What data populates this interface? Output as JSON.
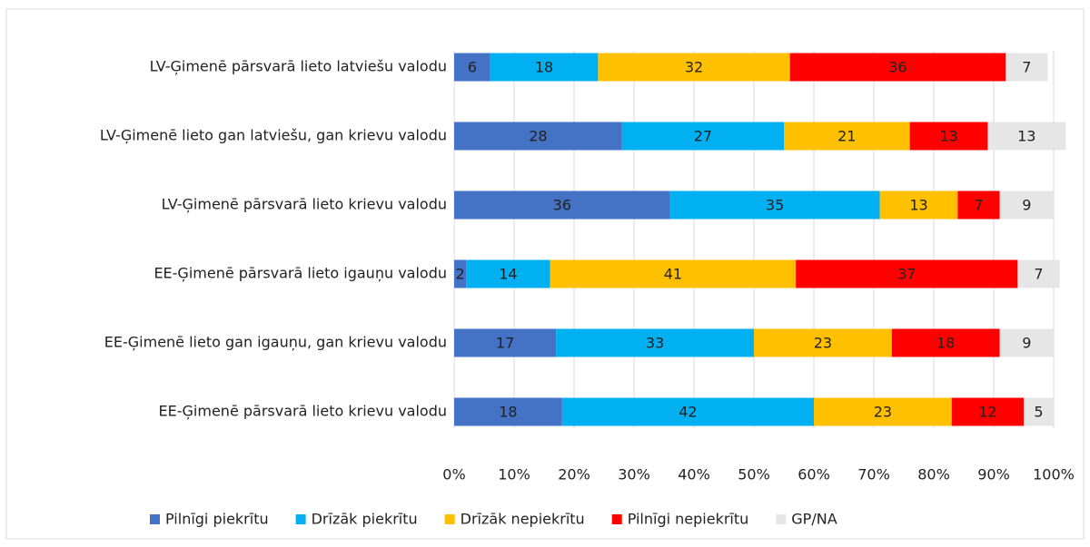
{
  "chart_data": {
    "type": "stacked_barh",
    "categories": [
      "LV-Ģimenē pārsvarā lieto latviešu valodu",
      "LV-Ģimenē lieto gan latviešu, gan krievu valodu",
      "LV-Ģimenē pārsvarā lieto krievu valodu",
      "EE-Ģimenē pārsvarā lieto igauņu valodu",
      "EE-Ģimenē lieto gan igauņu, gan krievu valodu",
      "EE-Ģimenē pārsvarā lieto krievu valodu"
    ],
    "series": [
      {
        "name": "Pilnīgi piekrītu",
        "color": "#4472c4",
        "values": [
          6,
          28,
          36,
          2,
          17,
          18
        ]
      },
      {
        "name": "Drīzāk piekrītu",
        "color": "#00b0f0",
        "values": [
          18,
          27,
          35,
          14,
          33,
          42
        ]
      },
      {
        "name": "Drīzāk nepiekrītu",
        "color": "#ffc000",
        "values": [
          32,
          21,
          13,
          41,
          23,
          23
        ]
      },
      {
        "name": "Pilnīgi nepiekrītu",
        "color": "#ff0000",
        "values": [
          36,
          13,
          7,
          37,
          18,
          12
        ]
      },
      {
        "name": "GP/NA",
        "color": "#e7e6e6",
        "values": [
          7,
          13,
          9,
          7,
          9,
          5
        ]
      }
    ],
    "xlim": [
      0,
      100
    ],
    "xticks": [
      {
        "value": 0,
        "label": "0%"
      },
      {
        "value": 10,
        "label": "10%"
      },
      {
        "value": 20,
        "label": "20%"
      },
      {
        "value": 30,
        "label": "30%"
      },
      {
        "value": 40,
        "label": "40%"
      },
      {
        "value": 50,
        "label": "50%"
      },
      {
        "value": 60,
        "label": "60%"
      },
      {
        "value": 70,
        "label": "70%"
      },
      {
        "value": 80,
        "label": "80%"
      },
      {
        "value": 90,
        "label": "90%"
      },
      {
        "value": 100,
        "label": "100%"
      }
    ],
    "grid": true,
    "legend": "bottom"
  }
}
